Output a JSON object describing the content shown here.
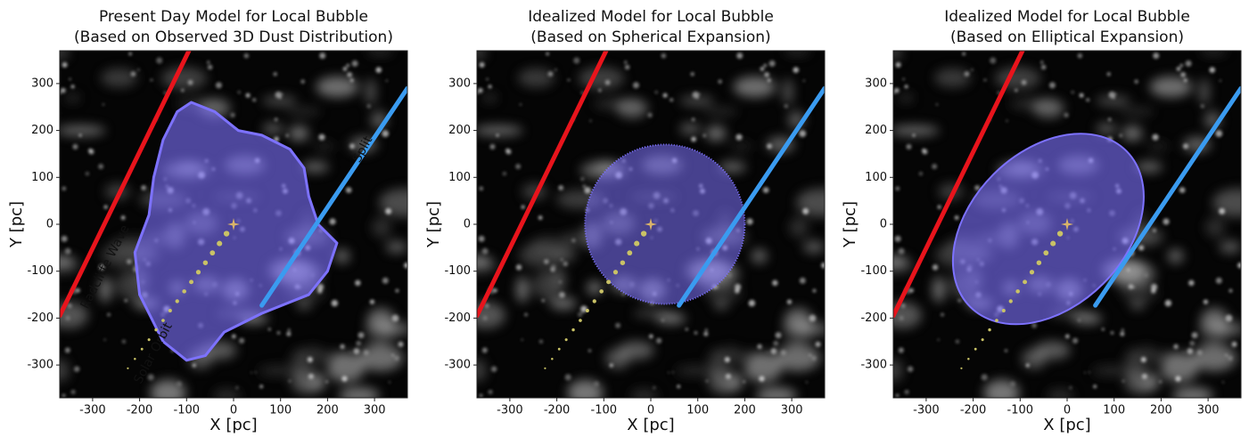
{
  "chart_data": [
    {
      "type": "line",
      "title": "Present Day Model for Local Bubble",
      "subtitle": "(Based on Observed 3D Dust Distribution)",
      "xlabel": "X [pc]",
      "ylabel": "Y [pc]",
      "xlim": [
        -370,
        370
      ],
      "ylim": [
        -370,
        370
      ],
      "xticks": [
        -300,
        -200,
        -100,
        0,
        100,
        200,
        300
      ],
      "yticks": [
        -300,
        -200,
        -100,
        0,
        100,
        200,
        300
      ],
      "series": [
        {
          "type": "polygon",
          "color": "#7d72ff",
          "x": [
            -90,
            -40,
            10,
            60,
            120,
            150,
            160,
            180,
            220,
            200,
            160,
            60,
            -20,
            -60,
            -100,
            -150,
            -200,
            -210,
            -180,
            -170,
            -150,
            -120
          ],
          "y": [
            260,
            240,
            200,
            190,
            160,
            120,
            60,
            0,
            -40,
            -100,
            -150,
            -190,
            -230,
            -280,
            -290,
            -250,
            -150,
            -60,
            20,
            100,
            180,
            240
          ]
        },
        {
          "type": "line",
          "color": "#e8141c",
          "x": [
            -370,
            -95
          ],
          "y": [
            -195,
            370
          ]
        },
        {
          "type": "line",
          "color": "#3a9bf0",
          "x": [
            60,
            370
          ],
          "y": [
            -173,
            290
          ]
        },
        {
          "type": "scatter",
          "color": "#c9c266",
          "x": [
            -15,
            -30,
            -45,
            -60,
            -75,
            -90,
            -105,
            -120,
            -135,
            -150,
            -165,
            -180,
            -195,
            -210,
            -225
          ],
          "y": [
            -20,
            -41,
            -61,
            -82,
            -102,
            -123,
            -143,
            -164,
            -184,
            -205,
            -225,
            -246,
            -266,
            -287,
            -307
          ]
        },
        {
          "type": "star",
          "color": "#d9b36a",
          "x": [
            0
          ],
          "y": [
            0
          ]
        }
      ],
      "annotations": [
        {
          "text": "Radcliffe Wave",
          "color": "#e8141c"
        },
        {
          "text": "Split",
          "color": "#3a9bf0"
        },
        {
          "text": "Solar Orbit",
          "color": "#d8b070"
        }
      ]
    },
    {
      "type": "line",
      "title": "Idealized Model for Local Bubble",
      "subtitle": "(Based on Spherical Expansion)",
      "xlabel": "X [pc]",
      "ylabel": "Y [pc]",
      "xlim": [
        -370,
        370
      ],
      "ylim": [
        -370,
        370
      ],
      "xticks": [
        -300,
        -200,
        -100,
        0,
        100,
        200,
        300
      ],
      "yticks": [
        -300,
        -200,
        -100,
        0,
        100,
        200,
        300
      ],
      "series": [
        {
          "type": "circle",
          "color": "#7d72ff",
          "x": 30,
          "y": 0,
          "r": 170
        },
        {
          "type": "line",
          "color": "#e8141c",
          "x": [
            -370,
            -95
          ],
          "y": [
            -195,
            370
          ]
        },
        {
          "type": "line",
          "color": "#3a9bf0",
          "x": [
            60,
            370
          ],
          "y": [
            -173,
            290
          ]
        },
        {
          "type": "scatter",
          "color": "#c9c266",
          "x": [
            -15,
            -30,
            -45,
            -60,
            -75,
            -90,
            -105,
            -120,
            -135,
            -150,
            -165,
            -180,
            -195,
            -210,
            -225
          ],
          "y": [
            -20,
            -41,
            -61,
            -82,
            -102,
            -123,
            -143,
            -164,
            -184,
            -205,
            -225,
            -246,
            -266,
            -287,
            -307
          ]
        },
        {
          "type": "star",
          "color": "#d9b36a",
          "x": [
            0
          ],
          "y": [
            0
          ]
        }
      ]
    },
    {
      "type": "line",
      "title": "Idealized Model for Local Bubble",
      "subtitle": "(Based on Elliptical Expansion)",
      "xlabel": "X [pc]",
      "ylabel": "Y [pc]",
      "xlim": [
        -370,
        370
      ],
      "ylim": [
        -370,
        370
      ],
      "xticks": [
        -300,
        -200,
        -100,
        0,
        100,
        200,
        300
      ],
      "yticks": [
        -300,
        -200,
        -100,
        0,
        100,
        200,
        300
      ],
      "series": [
        {
          "type": "ellipse",
          "color": "#7d72ff",
          "x": -40,
          "y": -10,
          "rx": 235,
          "ry": 165,
          "angle": 45
        },
        {
          "type": "line",
          "color": "#e8141c",
          "x": [
            -370,
            -95
          ],
          "y": [
            -195,
            370
          ]
        },
        {
          "type": "line",
          "color": "#3a9bf0",
          "x": [
            60,
            370
          ],
          "y": [
            -173,
            290
          ]
        },
        {
          "type": "scatter",
          "color": "#c9c266",
          "x": [
            -15,
            -30,
            -45,
            -60,
            -75,
            -90,
            -105,
            -120,
            -135,
            -150,
            -165,
            -180,
            -195,
            -210,
            -225
          ],
          "y": [
            -20,
            -41,
            -61,
            -82,
            -102,
            -123,
            -143,
            -164,
            -184,
            -205,
            -225,
            -246,
            -266,
            -287,
            -307
          ]
        },
        {
          "type": "star",
          "color": "#d9b36a",
          "x": [
            0
          ],
          "y": [
            0
          ]
        }
      ]
    }
  ]
}
